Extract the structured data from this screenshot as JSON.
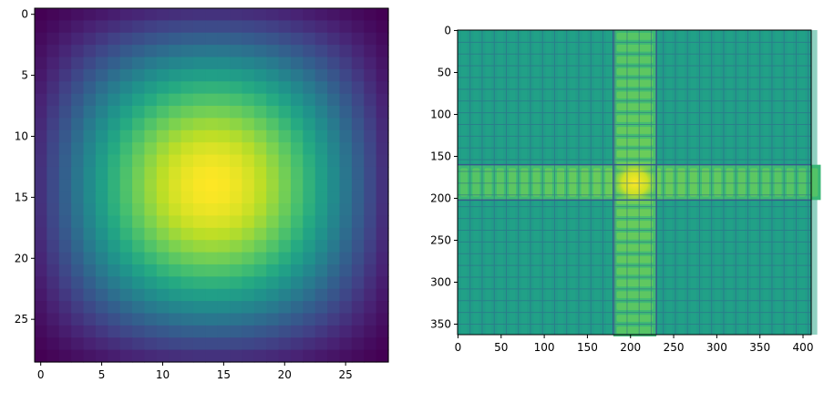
{
  "chart_data": [
    {
      "type": "heatmap",
      "title": "",
      "xlabel": "",
      "ylabel": "",
      "colormap": "viridis",
      "rows": 29,
      "cols": 29,
      "xlim": [
        -0.5,
        28.5
      ],
      "ylim": [
        28.5,
        -0.5
      ],
      "xticks": [
        0,
        5,
        10,
        15,
        20,
        25
      ],
      "yticks": [
        0,
        5,
        10,
        15,
        20,
        25
      ],
      "peak": {
        "row": 14,
        "col": 14,
        "value": 1.0
      },
      "edge_value": 0.0,
      "profile": "separable sinc-like (1D sinc along each axis, peak at center, minimum at corners)",
      "grid": false
    },
    {
      "type": "heatmap",
      "title": "",
      "xlabel": "",
      "ylabel": "",
      "colormap": "viridis",
      "rows": 363,
      "cols": 410,
      "xlim": [
        -0.5,
        409.5
      ],
      "ylim": [
        362.5,
        -0.5
      ],
      "xticks": [
        0,
        50,
        100,
        150,
        200,
        250,
        300,
        350,
        400
      ],
      "yticks": [
        0,
        50,
        100,
        150,
        200,
        250,
        300,
        350
      ],
      "peak": {
        "row": 181,
        "col": 205,
        "value": 1.0
      },
      "horizontal_band_rows": [
        160,
        202
      ],
      "vertical_band_cols": [
        180,
        230
      ],
      "background_level": 0.55,
      "band_level": 0.78,
      "grid_line_spacing": 14,
      "grid_line_level": 0.33,
      "profile": "log-magnitude spectrum: bright cross through center with periodic ripples, dark periodic grid lines",
      "grid": false
    }
  ]
}
